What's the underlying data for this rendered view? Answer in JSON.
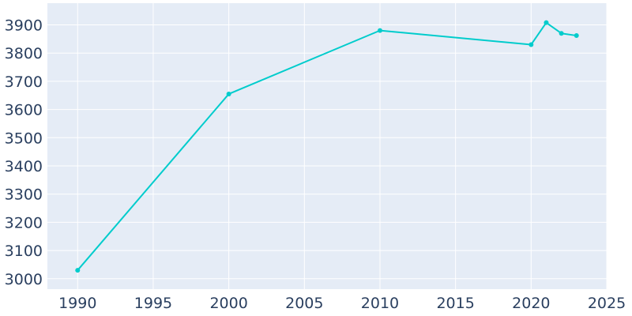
{
  "colors": {
    "background": "#ffffff",
    "plot_background": "#e5ecf6",
    "grid": "#ffffff",
    "series": "#00cccc",
    "tick_text": "#2a3f5f"
  },
  "chart_data": {
    "type": "line",
    "title": "",
    "xlabel": "",
    "ylabel": "",
    "x": [
      1990,
      2000,
      2010,
      2020,
      2021,
      2022,
      2023
    ],
    "series": [
      {
        "values": [
          3030,
          3655,
          3880,
          3830,
          3908,
          3870,
          3862
        ]
      }
    ],
    "xlim": [
      1988,
      2025
    ],
    "ylim": [
      2963,
      3977
    ],
    "xticks": [
      1990,
      1995,
      2000,
      2005,
      2010,
      2015,
      2020,
      2025
    ],
    "yticks": [
      3000,
      3100,
      3200,
      3300,
      3400,
      3500,
      3600,
      3700,
      3800,
      3900
    ],
    "grid": true,
    "legend": "none",
    "markers": true
  }
}
